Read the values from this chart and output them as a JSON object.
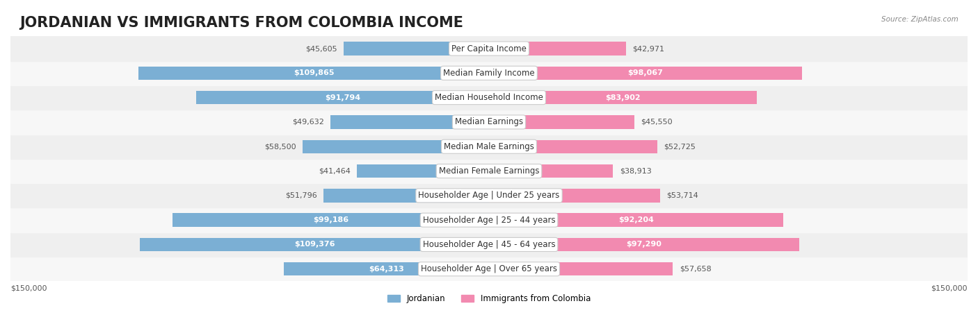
{
  "title": "JORDANIAN VS IMMIGRANTS FROM COLOMBIA INCOME",
  "source": "Source: ZipAtlas.com",
  "categories": [
    "Per Capita Income",
    "Median Family Income",
    "Median Household Income",
    "Median Earnings",
    "Median Male Earnings",
    "Median Female Earnings",
    "Householder Age | Under 25 years",
    "Householder Age | 25 - 44 years",
    "Householder Age | 45 - 64 years",
    "Householder Age | Over 65 years"
  ],
  "jordanian": [
    45605,
    109865,
    91794,
    49632,
    58500,
    41464,
    51796,
    99186,
    109376,
    64313
  ],
  "colombia": [
    42971,
    98067,
    83902,
    45550,
    52725,
    38913,
    53714,
    92204,
    97290,
    57658
  ],
  "jordanian_color": "#7bafd4",
  "colombia_color": "#f28ab0",
  "jordanian_color_dark": "#5b8fbf",
  "colombia_color_dark": "#e8608a",
  "bar_bg_color": "#f0f0f0",
  "row_bg_colors": [
    "#f7f7f7",
    "#efefef"
  ],
  "max_val": 150000,
  "xlabel_left": "$150,000",
  "xlabel_right": "$150,000",
  "legend_jordanian": "Jordanian",
  "legend_colombia": "Immigrants from Colombia",
  "title_fontsize": 15,
  "label_fontsize": 8.5,
  "value_fontsize": 8.0
}
